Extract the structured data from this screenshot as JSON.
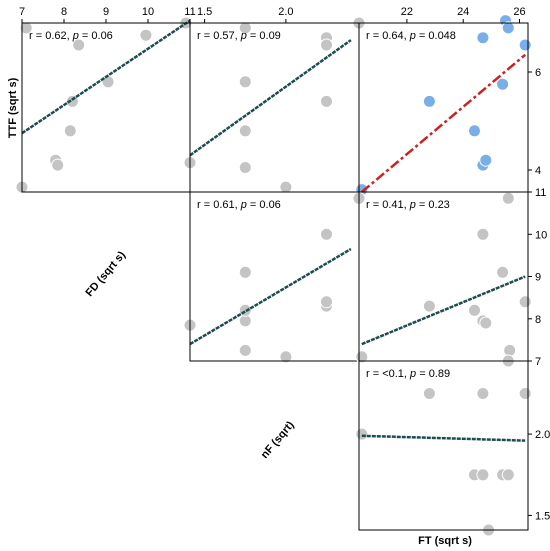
{
  "chart_data": {
    "type": "scatter",
    "layout": "pairs-matrix-upper-triangle",
    "variables": [
      {
        "key": "TTF",
        "label": "TTF (sqrt s)",
        "range": [
          3.55,
          7.0
        ],
        "ticks": [
          4,
          6
        ]
      },
      {
        "key": "FD",
        "label": "FD (sqrt s)",
        "range": [
          7.0,
          11.0
        ],
        "ticks": [
          7,
          8,
          9,
          10,
          11
        ]
      },
      {
        "key": "nF",
        "label": "nF (sqrt)",
        "range": [
          1.41,
          2.45
        ],
        "ticks": [
          1.5,
          2.0
        ]
      },
      {
        "key": "FT",
        "label": "FT (sqrt s)",
        "range": [
          20.3,
          26.3
        ],
        "ticks": [
          22,
          24,
          26
        ]
      }
    ],
    "axes": {
      "x_ticks": [
        {
          "panel_col": 0,
          "values": [
            "7",
            "8",
            "9",
            "10",
            "11"
          ]
        },
        {
          "panel_col": 1,
          "values": [
            "1.5",
            "2.0"
          ]
        },
        {
          "panel_col": 2,
          "values": [
            "22",
            "24",
            "26"
          ]
        }
      ],
      "y_ticks": [
        {
          "panel_row": 0,
          "values": [
            "4",
            "6"
          ]
        },
        {
          "panel_row": 1,
          "values": [
            "7",
            "8",
            "9",
            "10",
            "11"
          ]
        },
        {
          "panel_row": 2,
          "values": [
            "1.5",
            "2.0"
          ]
        }
      ]
    },
    "panels": [
      {
        "id": "ttf-fd",
        "row": 0,
        "col": 0,
        "x": "FD",
        "y": "TTF",
        "r_text": "r = 0.62, ",
        "p_label": "p",
        "p_text": " = 0.06",
        "significant": false,
        "points": [
          [
            7.1,
            6.9
          ],
          [
            7.0,
            3.65
          ],
          [
            7.8,
            4.2
          ],
          [
            7.85,
            4.1
          ],
          [
            8.15,
            4.8
          ],
          [
            8.2,
            5.4
          ],
          [
            8.35,
            6.55
          ],
          [
            9.05,
            5.8
          ],
          [
            9.95,
            6.75
          ],
          [
            10.9,
            7.0
          ]
        ],
        "fit": [
          [
            7.0,
            4.75
          ],
          [
            11.0,
            7.05
          ]
        ]
      },
      {
        "id": "ttf-nf",
        "row": 0,
        "col": 1,
        "x": "nF",
        "y": "TTF",
        "r_text": "r = 0.57, ",
        "p_label": "p",
        "p_text": " = 0.09",
        "significant": false,
        "points": [
          [
            1.41,
            4.15
          ],
          [
            1.75,
            6.9
          ],
          [
            1.75,
            5.8
          ],
          [
            1.75,
            4.8
          ],
          [
            1.75,
            4.05
          ],
          [
            2.0,
            3.65
          ],
          [
            2.25,
            6.7
          ],
          [
            2.25,
            6.55
          ],
          [
            2.25,
            5.4
          ],
          [
            2.45,
            7.0
          ]
        ],
        "fit": [
          [
            1.41,
            4.3
          ],
          [
            2.4,
            6.65
          ]
        ]
      },
      {
        "id": "ttf-ft",
        "row": 0,
        "col": 2,
        "x": "FT",
        "y": "TTF",
        "r_text": "r = 0.64, ",
        "p_label": "p",
        "p_text": " = 0.048",
        "significant": true,
        "points": [
          [
            20.4,
            3.6
          ],
          [
            22.8,
            5.4
          ],
          [
            24.4,
            4.8
          ],
          [
            24.7,
            4.1
          ],
          [
            24.8,
            4.2
          ],
          [
            24.7,
            6.7
          ],
          [
            25.4,
            5.75
          ],
          [
            25.5,
            7.05
          ],
          [
            25.6,
            6.9
          ],
          [
            26.2,
            6.55
          ]
        ],
        "fit": [
          [
            20.4,
            3.55
          ],
          [
            26.2,
            6.35
          ]
        ]
      },
      {
        "id": "fd-nf",
        "row": 1,
        "col": 1,
        "x": "nF",
        "y": "FD",
        "r_text": "r = 0.61, ",
        "p_label": "p",
        "p_text": " = 0.06",
        "significant": false,
        "points": [
          [
            1.41,
            7.85
          ],
          [
            1.75,
            7.25
          ],
          [
            1.75,
            7.95
          ],
          [
            1.75,
            8.2
          ],
          [
            1.75,
            9.1
          ],
          [
            2.0,
            7.1
          ],
          [
            2.25,
            8.3
          ],
          [
            2.25,
            8.4
          ],
          [
            2.25,
            10.0
          ],
          [
            2.45,
            10.85
          ]
        ],
        "fit": [
          [
            1.41,
            7.4
          ],
          [
            2.4,
            9.65
          ]
        ]
      },
      {
        "id": "fd-ft",
        "row": 1,
        "col": 2,
        "x": "FT",
        "y": "FD",
        "r_text": "r = 0.41, ",
        "p_label": "p",
        "p_text": " = 0.23",
        "significant": false,
        "points": [
          [
            20.4,
            7.1
          ],
          [
            22.8,
            8.3
          ],
          [
            24.4,
            8.2
          ],
          [
            24.7,
            7.95
          ],
          [
            24.8,
            7.9
          ],
          [
            24.7,
            10.0
          ],
          [
            25.4,
            9.1
          ],
          [
            25.6,
            10.85
          ],
          [
            25.65,
            7.25
          ],
          [
            26.2,
            8.4
          ]
        ],
        "fit": [
          [
            20.4,
            7.4
          ],
          [
            26.2,
            9.0
          ]
        ]
      },
      {
        "id": "nf-ft",
        "row": 2,
        "col": 2,
        "x": "FT",
        "y": "nF",
        "r_text": "r = <0.1, ",
        "p_label": "p",
        "p_text": " = 0.89",
        "significant": false,
        "points": [
          [
            20.4,
            2.0
          ],
          [
            22.8,
            2.25
          ],
          [
            24.4,
            1.75
          ],
          [
            24.7,
            1.75
          ],
          [
            24.7,
            2.25
          ],
          [
            24.9,
            1.41
          ],
          [
            25.4,
            1.75
          ],
          [
            25.6,
            1.75
          ],
          [
            25.6,
            2.45
          ],
          [
            26.2,
            2.25
          ]
        ],
        "fit": [
          [
            20.4,
            1.99
          ],
          [
            26.2,
            1.96
          ]
        ]
      }
    ],
    "colors": {
      "point": "#c4c4c4",
      "point_significant": "#7aaee8",
      "fit": "#1e4d4d",
      "fit_significant": "#cc2222"
    }
  }
}
